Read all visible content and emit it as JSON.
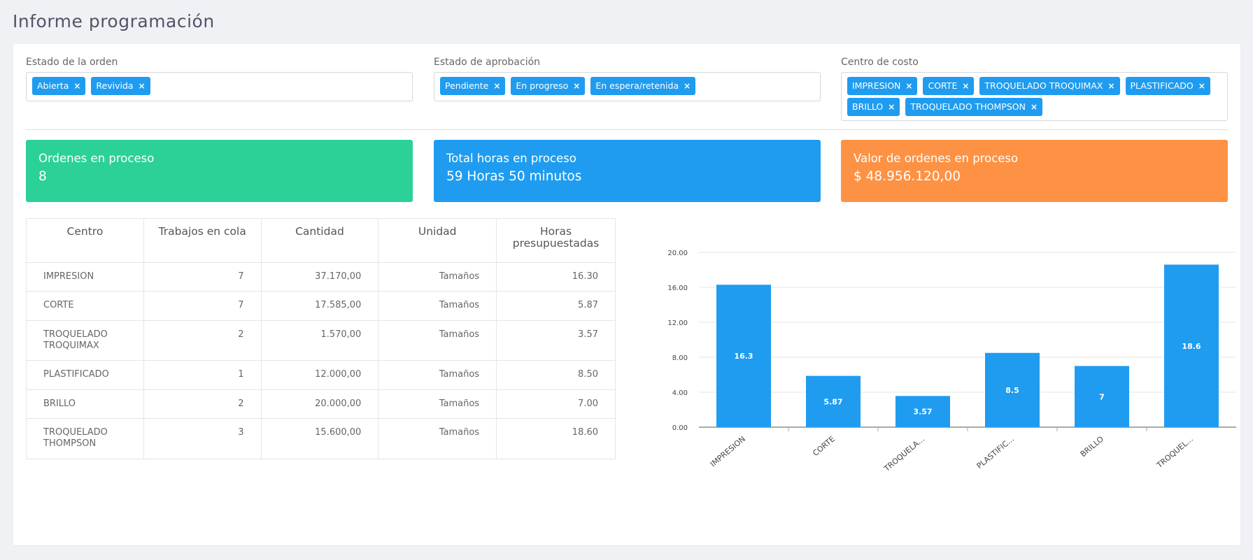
{
  "title": "Informe programación",
  "filters": {
    "estado_orden": {
      "label": "Estado de la orden",
      "tags": [
        "Abierta",
        "Revivida"
      ]
    },
    "estado_aprobacion": {
      "label": "Estado de aprobación",
      "tags": [
        "Pendiente",
        "En progreso",
        "En espera/retenida"
      ]
    },
    "centro_costo": {
      "label": "Centro de costo",
      "tags": [
        "IMPRESION",
        "CORTE",
        "TROQUELADO TROQUIMAX",
        "PLASTIFICADO",
        "BRILLO",
        "TROQUELADO THOMPSON"
      ]
    },
    "remove_symbol": "×"
  },
  "stats": {
    "ordenes": {
      "label": "Ordenes en proceso",
      "value": "8",
      "color": "#2bd197"
    },
    "horas": {
      "label": "Total horas en proceso",
      "value": "59 Horas 50 minutos",
      "color": "#1f9cf0"
    },
    "valor": {
      "label": "Valor de ordenes en proceso",
      "value": "$ 48.956.120,00",
      "color": "#fd9244"
    }
  },
  "table": {
    "headers": [
      "Centro",
      "Trabajos en cola",
      "Cantidad",
      "Unidad",
      "Horas presupuestadas"
    ],
    "rows": [
      [
        "IMPRESION",
        "7",
        "37.170,00",
        "Tamaños",
        "16.30"
      ],
      [
        "CORTE",
        "7",
        "17.585,00",
        "Tamaños",
        "5.87"
      ],
      [
        "TROQUELADO TROQUIMAX",
        "2",
        "1.570,00",
        "Tamaños",
        "3.57"
      ],
      [
        "PLASTIFICADO",
        "1",
        "12.000,00",
        "Tamaños",
        "8.50"
      ],
      [
        "BRILLO",
        "2",
        "20.000,00",
        "Tamaños",
        "7.00"
      ],
      [
        "TROQUELADO THOMPSON",
        "3",
        "15.600,00",
        "Tamaños",
        "18.60"
      ]
    ]
  },
  "chart_data": {
    "type": "bar",
    "categories": [
      "IMPRESION",
      "CORTE",
      "TROQUELA...",
      "PLASTIFIC...",
      "BRILLO",
      "TROQUEL..."
    ],
    "values": [
      16.3,
      5.87,
      3.57,
      8.5,
      7,
      18.6
    ],
    "value_labels": [
      "16.3",
      "5.87",
      "3.57",
      "8.5",
      "7",
      "18.6"
    ],
    "yticks": [
      "0.00",
      "4.00",
      "8.00",
      "12.00",
      "16.00",
      "20.00"
    ],
    "ylim": [
      0,
      20
    ],
    "grid": true,
    "bar_color": "#1f9cf0"
  }
}
